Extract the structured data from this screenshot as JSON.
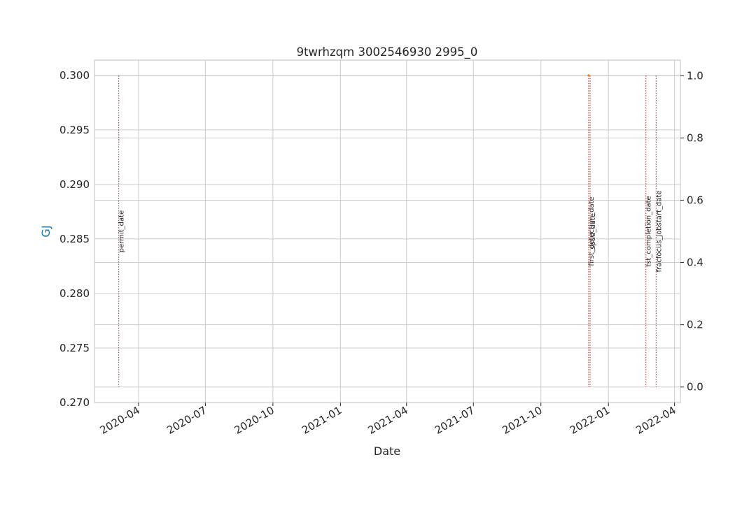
{
  "chart_data": {
    "type": "line",
    "title": "9twrhzqm 3002546930 2995_0",
    "xlabel": "Date",
    "ylabel": "GJ",
    "ylabel_color": "#1f77b4",
    "xlim": [
      "2020-02-01",
      "2022-04-09"
    ],
    "ylim": [
      0.27,
      0.3014
    ],
    "y2lim": [
      -0.05,
      1.05
    ],
    "x_ticks": [
      {
        "date": "2020-04-01",
        "label": "2020-04"
      },
      {
        "date": "2020-07-01",
        "label": "2020-07"
      },
      {
        "date": "2020-10-01",
        "label": "2020-10"
      },
      {
        "date": "2021-01-01",
        "label": "2021-01"
      },
      {
        "date": "2021-04-01",
        "label": "2021-04"
      },
      {
        "date": "2021-07-01",
        "label": "2021-07"
      },
      {
        "date": "2021-10-01",
        "label": "2021-10"
      },
      {
        "date": "2022-01-01",
        "label": "2022-01"
      },
      {
        "date": "2022-04-01",
        "label": "2022-04"
      }
    ],
    "y_ticks": [
      {
        "value": 0.27,
        "label": "0.270"
      },
      {
        "value": 0.275,
        "label": "0.275"
      },
      {
        "value": 0.28,
        "label": "0.280"
      },
      {
        "value": 0.285,
        "label": "0.285"
      },
      {
        "value": 0.29,
        "label": "0.290"
      },
      {
        "value": 0.295,
        "label": "0.295"
      },
      {
        "value": 0.3,
        "label": "0.300"
      }
    ],
    "y2_ticks": [
      {
        "value": 0.0,
        "label": "0.0"
      },
      {
        "value": 0.2,
        "label": "0.2"
      },
      {
        "value": 0.4,
        "label": "0.4"
      },
      {
        "value": 0.6,
        "label": "0.6"
      },
      {
        "value": 0.8,
        "label": "0.8"
      },
      {
        "value": 1.0,
        "label": "1.0"
      }
    ],
    "series": [
      {
        "values": [
          {
            "x": "2021-12-05",
            "y": 0.3
          }
        ],
        "color": "#ff7f0e"
      }
    ],
    "event_markers": [
      {
        "label": "permit_date",
        "date": "2020-03-05",
        "color": "#c0504d"
      },
      {
        "label": "first_detection_date",
        "date": "2021-12-05",
        "color": "#c0504d"
      },
      {
        "label": "spud_date",
        "date": "2021-12-07",
        "color": "#c0504d"
      },
      {
        "label": "tst_completion_date",
        "date": "2022-02-21",
        "color": "#c0504d"
      },
      {
        "label": "fracfocus_jobstart_date",
        "date": "2022-03-07",
        "color": "#c0504d"
      }
    ],
    "grid": true,
    "style": "whitegrid"
  }
}
